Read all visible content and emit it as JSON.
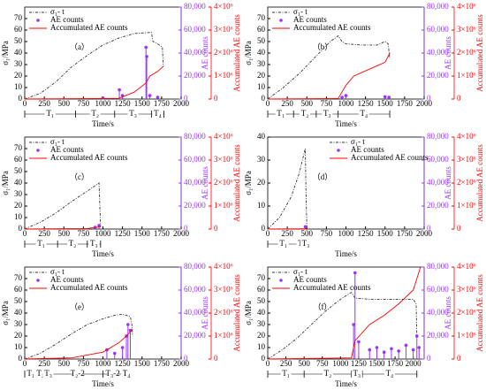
{
  "chart_data": [
    {
      "type": "line",
      "panel_label": "（a）",
      "x_label": "Time/s",
      "y_label": "σ₁/MPa",
      "y2_label": "AE counts",
      "y3_label": "Accumulated AE counts",
      "legend": "top-left",
      "xlim": [
        0,
        2000
      ],
      "xticks": [
        0,
        250,
        500,
        750,
        1000,
        1250,
        1500,
        1750,
        2000
      ],
      "ylim": [
        0,
        80
      ],
      "yticks": [
        0,
        10,
        20,
        30,
        40,
        50,
        60,
        70
      ],
      "y2lim": [
        0,
        80000
      ],
      "y2ticks": [
        0,
        {
          "value": 20000,
          "label": "20,000"
        },
        {
          "value": 40000,
          "label": "40,000"
        },
        {
          "value": 60000,
          "label": "60,000"
        },
        {
          "value": 80000,
          "label": "80,000"
        }
      ],
      "y3lim": [
        0,
        4000000
      ],
      "y3ticks": [
        0,
        {
          "value": 1000000,
          "label": "1×10⁶"
        },
        {
          "value": 2000000,
          "label": "2×10⁶"
        },
        {
          "value": 3000000,
          "label": "3×10⁶"
        },
        {
          "value": 4000000,
          "label": "4×10⁶"
        }
      ],
      "stage_bounds": [
        0,
        650,
        1150,
        1620,
        1780
      ],
      "stage_labels": [
        "T₁",
        "T₂",
        "T₃",
        "T₄"
      ],
      "series": [
        {
          "name": "σ₁- t",
          "color": "#333333",
          "axis": "y",
          "x": [
            0,
            200,
            400,
            600,
            800,
            1000,
            1200,
            1400,
            1620,
            1640,
            1700,
            1760,
            1770
          ],
          "values": [
            0,
            5,
            15,
            28,
            38,
            47,
            53,
            57,
            58,
            50,
            48,
            45,
            30
          ]
        },
        {
          "name": "AE counts",
          "color": "#9933ff",
          "axis": "y2",
          "x": [
            1000,
            1210,
            1250,
            1550,
            1560,
            1600,
            1700
          ],
          "values": [
            1000,
            8000,
            3000,
            45000,
            37000,
            3000,
            1500
          ]
        },
        {
          "name": "Accumulated AE counts",
          "color": "#ff0000",
          "axis": "y3",
          "x": [
            0,
            1200,
            1400,
            1550,
            1600,
            1700,
            1780
          ],
          "values": [
            0,
            30000,
            300000,
            700000,
            1000000,
            1200000,
            1450000
          ]
        }
      ]
    },
    {
      "type": "line",
      "panel_label": "（b）",
      "x_label": "Time/s",
      "y_label": "σ₁/MPa",
      "y2_label": "AE counts",
      "y3_label": "Accumulated AE counts",
      "legend": "top-left",
      "xlim": [
        0,
        2000
      ],
      "xticks": [
        0,
        250,
        500,
        750,
        1000,
        1250,
        1500,
        1750,
        2000
      ],
      "ylim": [
        0,
        80
      ],
      "yticks": [
        0,
        10,
        20,
        30,
        40,
        50,
        60,
        70
      ],
      "y2lim": [
        0,
        80000
      ],
      "y2ticks": [
        0,
        {
          "value": 20000,
          "label": "20,000"
        },
        {
          "value": 40000,
          "label": "40,000"
        },
        {
          "value": 60000,
          "label": "60,000"
        },
        {
          "value": 80000,
          "label": "80,000"
        }
      ],
      "y3lim": [
        0,
        4000000
      ],
      "y3ticks": [
        0,
        {
          "value": 1000000,
          "label": "1×10⁶"
        },
        {
          "value": 2000000,
          "label": "2×10⁶"
        },
        {
          "value": 3000000,
          "label": "3×10⁶"
        },
        {
          "value": 4000000,
          "label": "4×10⁶"
        }
      ],
      "stage_bounds": [
        0,
        330,
        620,
        900,
        1560
      ],
      "stage_labels": [
        "T₁",
        "T₂",
        "T₃",
        "T₄"
      ],
      "series": [
        {
          "name": "σ₁- t",
          "color": "#333333",
          "axis": "y",
          "x": [
            0,
            200,
            400,
            600,
            800,
            900,
            950,
            1000,
            1200,
            1400,
            1500,
            1540,
            1560
          ],
          "values": [
            0,
            10,
            22,
            36,
            50,
            55,
            50,
            48,
            47,
            47,
            50,
            48,
            35
          ]
        },
        {
          "name": "AE counts",
          "color": "#9933ff",
          "axis": "y2",
          "x": [
            950,
            1000,
            1500,
            1550
          ],
          "values": [
            1500,
            3000,
            2000,
            1500
          ]
        },
        {
          "name": "Accumulated AE counts",
          "color": "#ff0000",
          "axis": "y3",
          "x": [
            0,
            900,
            1000,
            1100,
            1300,
            1500,
            1560
          ],
          "values": [
            0,
            20000,
            600000,
            1000000,
            1300000,
            1600000,
            2000000
          ]
        }
      ]
    },
    {
      "type": "line",
      "panel_label": "（c）",
      "x_label": "Time/s",
      "y_label": "σ₁/MPa",
      "y2_label": "AE counts",
      "y3_label": "Accumulated AE counts",
      "legend": "top-left",
      "xlim": [
        0,
        2000
      ],
      "xticks": [
        0,
        250,
        500,
        750,
        1000,
        1250,
        1500,
        1750,
        2000
      ],
      "ylim": [
        0,
        80
      ],
      "yticks": [
        0,
        10,
        20,
        30,
        40,
        50,
        60,
        70
      ],
      "y2lim": [
        0,
        80000
      ],
      "y2ticks": [
        0,
        {
          "value": 20000,
          "label": "20,000"
        },
        {
          "value": 40000,
          "label": "40,000"
        },
        {
          "value": 60000,
          "label": "60,000"
        },
        {
          "value": 80000,
          "label": "80,000"
        }
      ],
      "y3lim": [
        0,
        4000000
      ],
      "y3ticks": [
        0,
        {
          "value": 1000000,
          "label": "1×10⁶"
        },
        {
          "value": 2000000,
          "label": "2×10⁶"
        },
        {
          "value": 3000000,
          "label": "3×10⁶"
        },
        {
          "value": 4000000,
          "label": "4×10⁶"
        }
      ],
      "stage_bounds": [
        0,
        420,
        800,
        970
      ],
      "stage_labels": [
        "T₁",
        "T₂",
        "T₃"
      ],
      "series": [
        {
          "name": "σ₁- t",
          "color": "#333333",
          "axis": "y",
          "x": [
            0,
            200,
            400,
            600,
            800,
            950,
            960,
            970
          ],
          "values": [
            0,
            6,
            14,
            24,
            33,
            40,
            20,
            2
          ]
        },
        {
          "name": "AE counts",
          "color": "#9933ff",
          "axis": "y2",
          "x": [
            900,
            950
          ],
          "values": [
            1500,
            3000
          ]
        },
        {
          "name": "Accumulated AE counts",
          "color": "#ff0000",
          "axis": "y3",
          "x": [
            0,
            800,
            970
          ],
          "values": [
            0,
            20000,
            100000
          ]
        }
      ]
    },
    {
      "type": "line",
      "panel_label": "（d）",
      "x_label": "Time/s",
      "y_label": "σ₁/MPa",
      "y2_label": "AE counts",
      "y3_label": "Accumulated AE counts",
      "legend": "top-right",
      "xlim": [
        0,
        2000
      ],
      "xticks": [
        0,
        250,
        500,
        750,
        1000,
        1250,
        1500,
        1750,
        2000
      ],
      "ylim": [
        0,
        40
      ],
      "yticks": [
        0,
        10,
        20,
        30,
        40
      ],
      "y2lim": [
        0,
        80000
      ],
      "y2ticks": [
        0,
        {
          "value": 20000,
          "label": "20,000"
        },
        {
          "value": 40000,
          "label": "40,000"
        },
        {
          "value": 60000,
          "label": "60,000"
        },
        {
          "value": 80000,
          "label": "80,000"
        }
      ],
      "y3lim": [
        0,
        4000000
      ],
      "y3ticks": [
        0,
        {
          "value": 1000000,
          "label": "1×10⁶"
        },
        {
          "value": 2000000,
          "label": "2×10⁶"
        },
        {
          "value": 3000000,
          "label": "3×10⁶"
        },
        {
          "value": 4000000,
          "label": "4×10⁶"
        }
      ],
      "stage_bounds": [
        0,
        400,
        470,
        500
      ],
      "stage_labels": [
        "T₁",
        "T₂",
        "T₃"
      ],
      "series": [
        {
          "name": "σ₁- t",
          "color": "#333333",
          "axis": "y",
          "x": [
            0,
            150,
            300,
            400,
            480,
            490,
            500
          ],
          "values": [
            0,
            5,
            14,
            24,
            35,
            15,
            1
          ]
        },
        {
          "name": "AE counts",
          "color": "#9933ff",
          "axis": "y2",
          "x": [
            480
          ],
          "values": [
            2000
          ]
        },
        {
          "name": "Accumulated AE counts",
          "color": "#ff0000",
          "axis": "y3",
          "x": [
            0,
            480,
            500
          ],
          "values": [
            0,
            10000,
            40000
          ]
        }
      ]
    },
    {
      "type": "line",
      "panel_label": "（e）",
      "x_label": "Time/s",
      "y_label": "σ₁/MPa",
      "y2_label": "AE counts",
      "y3_label": "Accumulated AE counts",
      "legend": "top-left",
      "xlim": [
        0,
        2000
      ],
      "xticks": [
        0,
        250,
        500,
        750,
        1000,
        1250,
        1500,
        1750,
        2000
      ],
      "ylim": [
        0,
        80
      ],
      "yticks": [
        0,
        10,
        20,
        30,
        40,
        50,
        60,
        70
      ],
      "y2lim": [
        0,
        80000
      ],
      "y2ticks": [
        0,
        {
          "value": 20000,
          "label": "20,000"
        },
        {
          "value": 40000,
          "label": "40,000"
        },
        {
          "value": 60000,
          "label": "60,000"
        },
        {
          "value": 80000,
          "label": "80,000"
        }
      ],
      "y3lim": [
        0,
        4000000
      ],
      "y3ticks": [
        0,
        {
          "value": 1000000,
          "label": "1×10⁶"
        },
        {
          "value": 2000000,
          "label": "2×10⁶"
        },
        {
          "value": 3000000,
          "label": "3×10⁶"
        },
        {
          "value": 4000000,
          "label": "4×10⁶"
        }
      ],
      "stage_bounds": [
        0,
        150,
        250,
        350,
        1000,
        1250,
        1350
      ],
      "stage_labels": [
        "T₁",
        "T₂",
        "T₃",
        "T₂-2",
        "T₃-2",
        "T₄"
      ],
      "series": [
        {
          "name": "σ₁- t",
          "color": "#333333",
          "axis": "y",
          "x": [
            0,
            200,
            400,
            600,
            800,
            1000,
            1150,
            1250,
            1350,
            1370,
            1380
          ],
          "values": [
            0,
            5,
            13,
            22,
            30,
            35,
            38,
            39,
            37,
            30,
            20
          ]
        },
        {
          "name": "AE counts",
          "color": "#9933ff",
          "axis": "y2",
          "x": [
            1050,
            1150,
            1250,
            1300,
            1320,
            1350
          ],
          "values": [
            8000,
            5000,
            10000,
            20000,
            30000,
            25000
          ]
        },
        {
          "name": "Accumulated AE counts",
          "color": "#ff0000",
          "axis": "y3",
          "x": [
            0,
            600,
            1000,
            1200,
            1300,
            1380
          ],
          "values": [
            0,
            50000,
            300000,
            700000,
            1000000,
            1300000
          ]
        }
      ]
    },
    {
      "type": "line",
      "panel_label": "（f）",
      "x_label": "Time/s",
      "y_label": "σ₁/MPa",
      "y2_label": "AE counts",
      "y3_label": "Accumulated AE counts",
      "legend": "top-left",
      "xlim": [
        0,
        2150
      ],
      "xticks": [
        0,
        250,
        500,
        750,
        1000,
        1250,
        1500,
        1750,
        2000
      ],
      "ylim": [
        0,
        80
      ],
      "yticks": [
        0,
        10,
        20,
        30,
        40,
        50,
        60,
        70
      ],
      "y2lim": [
        0,
        80000
      ],
      "y2ticks": [
        0,
        {
          "value": 20000,
          "label": "20,000"
        },
        {
          "value": 40000,
          "label": "40,000"
        },
        {
          "value": 60000,
          "label": "60,000"
        },
        {
          "value": 80000,
          "label": "80,000"
        }
      ],
      "y3lim": [
        0,
        4000000
      ],
      "y3ticks": [
        0,
        {
          "value": 1000000,
          "label": "1×10⁶"
        },
        {
          "value": 2000000,
          "label": "2×10⁶"
        },
        {
          "value": 3000000,
          "label": "3×10⁶"
        },
        {
          "value": 4000000,
          "label": "4×10⁶"
        }
      ],
      "stage_bounds": [
        0,
        500,
        1150,
        1300,
        2050
      ],
      "stage_labels": [
        "T₁",
        "T₂",
        "T₃",
        "T₄"
      ],
      "series": [
        {
          "name": "σ₁- t",
          "color": "#333333",
          "axis": "y",
          "x": [
            0,
            200,
            400,
            600,
            800,
            1000,
            1150,
            1200,
            1400,
            1700,
            2000,
            2040,
            2050
          ],
          "values": [
            0,
            8,
            18,
            30,
            42,
            52,
            58,
            53,
            52,
            52,
            52,
            48,
            20
          ]
        },
        {
          "name": "AE counts",
          "color": "#9933ff",
          "axis": "y2",
          "x": [
            1180,
            1200,
            1250,
            1400,
            1500,
            1600,
            1700,
            1800,
            1900,
            2000,
            2050,
            2080
          ],
          "values": [
            30000,
            75000,
            15000,
            8000,
            10000,
            6000,
            9000,
            7000,
            12000,
            8000,
            20000,
            10000
          ]
        },
        {
          "name": "Accumulated AE counts",
          "color": "#ff0000",
          "axis": "y3",
          "x": [
            0,
            1150,
            1200,
            1400,
            1600,
            1800,
            2000,
            2100
          ],
          "values": [
            0,
            50000,
            800000,
            1500000,
            1900000,
            2400000,
            3000000,
            4000000
          ]
        }
      ]
    }
  ]
}
